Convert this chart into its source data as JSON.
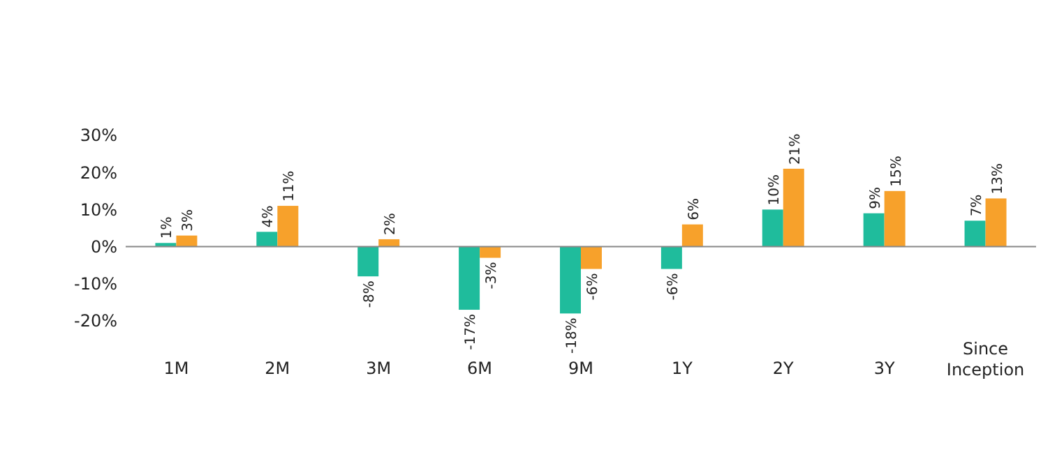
{
  "chart_data": {
    "type": "bar",
    "categories": [
      "1M",
      "2M",
      "3M",
      "6M",
      "9M",
      "1Y",
      "2Y",
      "3Y",
      "Since Inception"
    ],
    "series": [
      {
        "color": "#1fbc9c",
        "values": [
          1,
          4,
          -8,
          -17,
          -18,
          -6,
          10,
          9,
          7
        ],
        "value_labels": [
          "1%",
          "4%",
          "-8%",
          "-17%",
          "-18%",
          "-6%",
          "10%",
          "9%",
          "7%"
        ]
      },
      {
        "color": "#f7a12b",
        "values": [
          3,
          11,
          2,
          -3,
          -6,
          6,
          21,
          15,
          13
        ],
        "value_labels": [
          "3%",
          "11%",
          "2%",
          "-3%",
          "-6%",
          "6%",
          "21%",
          "15%",
          "13%"
        ]
      }
    ],
    "ylim": [
      -20,
      30
    ],
    "yticks": [
      {
        "value": -20,
        "label": "-20%"
      },
      {
        "value": -10,
        "label": "-10%"
      },
      {
        "value": 0,
        "label": "0%"
      },
      {
        "value": 10,
        "label": "10%"
      },
      {
        "value": 20,
        "label": "20%"
      },
      {
        "value": 30,
        "label": "30%"
      }
    ]
  }
}
